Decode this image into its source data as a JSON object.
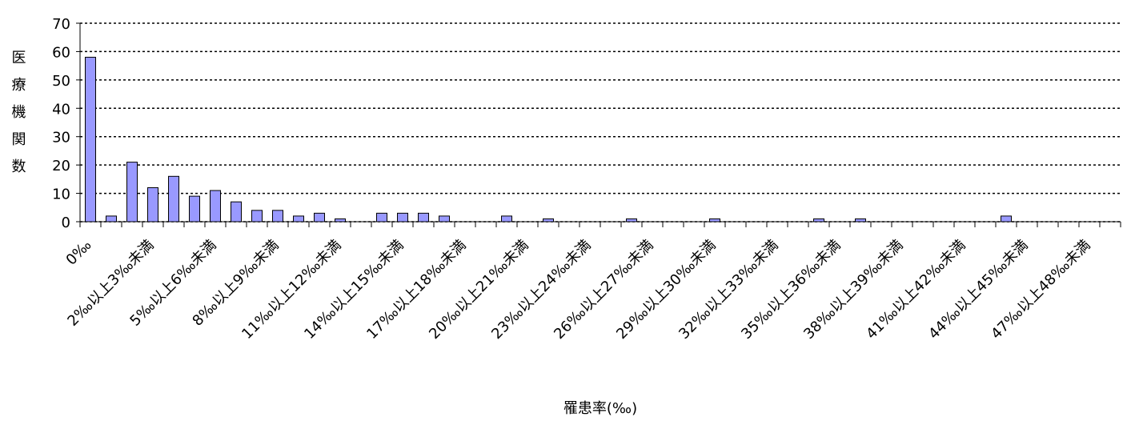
{
  "chart_data": {
    "type": "bar",
    "y_label": "医療機関数",
    "x_label": "罹患率(‰)",
    "categories": [
      "0‰",
      null,
      null,
      "2‰以上3‰未満",
      null,
      null,
      "5‰以上6‰未満",
      null,
      null,
      "8‰以上9‰未満",
      null,
      null,
      "11‰以上12‰未満",
      null,
      null,
      "14‰以上15‰未満",
      null,
      null,
      "17‰以上18‰未満",
      null,
      null,
      "20‰以上21‰未満",
      null,
      null,
      "23‰以上24‰未満",
      null,
      null,
      "26‰以上27‰未満",
      null,
      null,
      "29‰以上30‰未満",
      null,
      null,
      "32‰以上33‰未満",
      null,
      null,
      "35‰以上36‰未満",
      null,
      null,
      "38‰以上39‰未満",
      null,
      null,
      "41‰以上42‰未満",
      null,
      null,
      "44‰以上45‰未満",
      null,
      null,
      "47‰以上48‰未満",
      null
    ],
    "values": [
      58,
      2,
      21,
      12,
      16,
      9,
      11,
      7,
      4,
      4,
      2,
      3,
      1,
      0,
      3,
      3,
      3,
      2,
      0,
      0,
      2,
      0,
      1,
      0,
      0,
      0,
      1,
      0,
      0,
      0,
      1,
      0,
      0,
      0,
      0,
      1,
      0,
      1,
      0,
      0,
      0,
      0,
      0,
      0,
      2,
      0,
      0,
      0,
      0,
      0
    ],
    "color": "#9999ff",
    "ylim": [
      0,
      70
    ],
    "yticks": [
      0,
      10,
      20,
      30,
      40,
      50,
      60,
      70
    ],
    "grid": true
  }
}
